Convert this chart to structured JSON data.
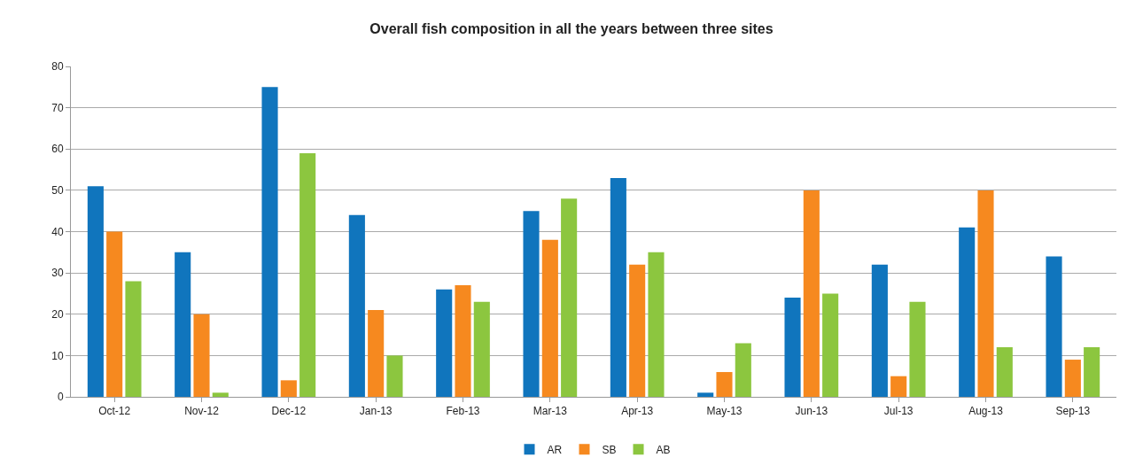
{
  "chart_data": {
    "type": "bar",
    "title": "Overall fish composition in all the years between three sites",
    "categories": [
      "Oct-12",
      "Nov-12",
      "Dec-12",
      "Jan-13",
      "Feb-13",
      "Mar-13",
      "Apr-13",
      "May-13",
      "Jun-13",
      "Jul-13",
      "Aug-13",
      "Sep-13"
    ],
    "series": [
      {
        "name": "AR",
        "color": "#1075bd",
        "values": [
          51,
          35,
          75,
          44,
          26,
          45,
          53,
          1,
          24,
          32,
          41,
          34
        ]
      },
      {
        "name": "SB",
        "color": "#f6891f",
        "values": [
          40,
          20,
          4,
          21,
          27,
          38,
          32,
          6,
          50,
          5,
          50,
          9
        ]
      },
      {
        "name": "AB",
        "color": "#8cc63f",
        "values": [
          28,
          1,
          59,
          10,
          23,
          48,
          35,
          13,
          25,
          23,
          12,
          12
        ]
      }
    ],
    "ylim": [
      0,
      80
    ],
    "yticks": [
      0,
      10,
      20,
      30,
      40,
      50,
      60,
      70,
      80
    ],
    "grid": "y",
    "legend": "bottom"
  }
}
